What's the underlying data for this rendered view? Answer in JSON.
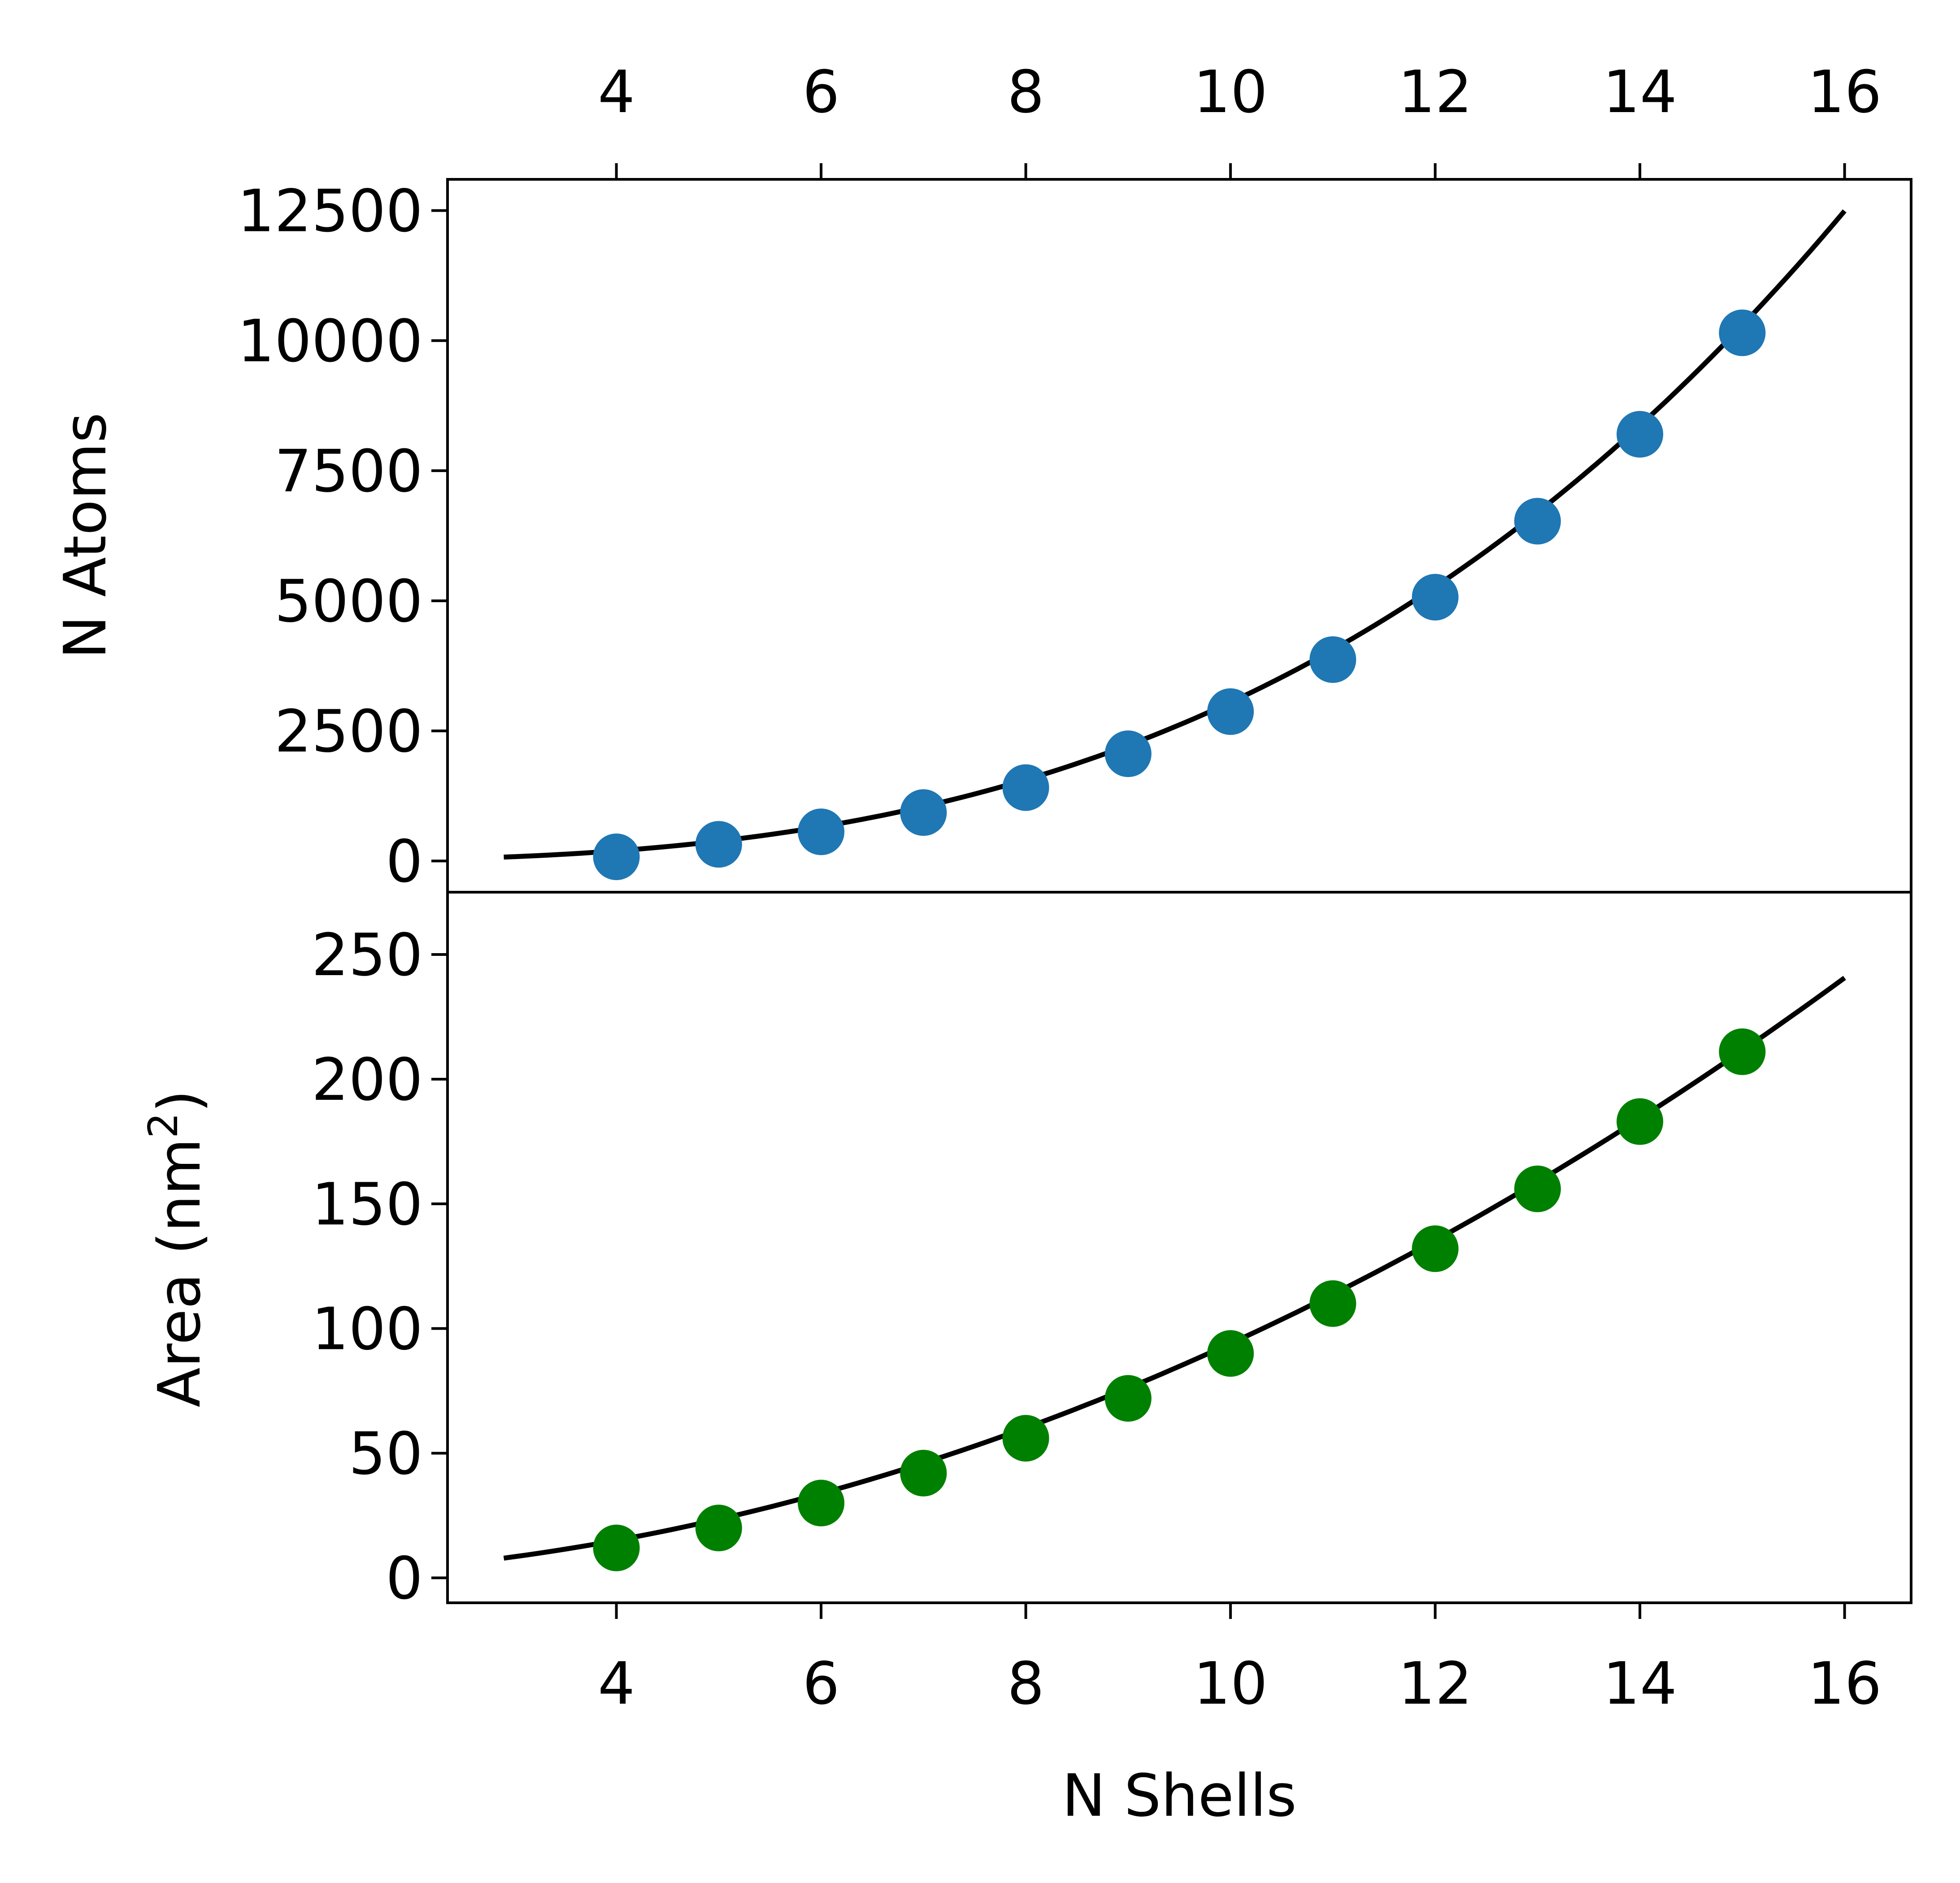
{
  "chart_data": [
    {
      "type": "scatter",
      "title": "",
      "xlabel": "",
      "ylabel": "N Atoms",
      "xlim": [
        2.35,
        16.65
      ],
      "ylim": [
        -600,
        13100
      ],
      "x_ticks": [
        "4",
        "6",
        "8",
        "10",
        "12",
        "14",
        "16"
      ],
      "x_tick_position": "top",
      "y_ticks": [
        "0",
        "2500",
        "5000",
        "7500",
        "10000",
        "12500"
      ],
      "grid": false,
      "series": [
        {
          "color": "#1f77b4",
          "marker": "circle",
          "x": [
            4,
            5,
            6,
            7,
            8,
            9,
            10,
            11,
            12,
            13,
            14,
            15
          ],
          "y": [
            80,
            320,
            560,
            930,
            1410,
            2060,
            2870,
            3870,
            5070,
            6530,
            8200,
            10150
          ]
        },
        {
          "kind": "fit-line",
          "color": "#000000",
          "x_range": [
            2.9,
            16
          ],
          "formula": "3.05*x^3"
        }
      ]
    },
    {
      "type": "scatter",
      "title": "",
      "xlabel": "N Shells",
      "ylabel": "Area (nm",
      "ylabel_superscript": "2",
      "ylabel_suffix": ")",
      "xlim": [
        2.35,
        16.65
      ],
      "ylim": [
        -10,
        275
      ],
      "x_ticks": [
        "4",
        "6",
        "8",
        "10",
        "12",
        "14",
        "16"
      ],
      "y_ticks": [
        "0",
        "50",
        "100",
        "150",
        "200",
        "250"
      ],
      "grid": false,
      "series": [
        {
          "color": "#008000",
          "marker": "circle",
          "x": [
            4,
            5,
            6,
            7,
            8,
            9,
            10,
            11,
            12,
            13,
            14,
            15
          ],
          "y": [
            12,
            20,
            30,
            42,
            56,
            72,
            90,
            110,
            132,
            156,
            183,
            211
          ]
        },
        {
          "kind": "fit-line",
          "color": "#000000",
          "x_range": [
            2.9,
            16
          ],
          "formula": "0.94*x^2"
        }
      ]
    }
  ]
}
